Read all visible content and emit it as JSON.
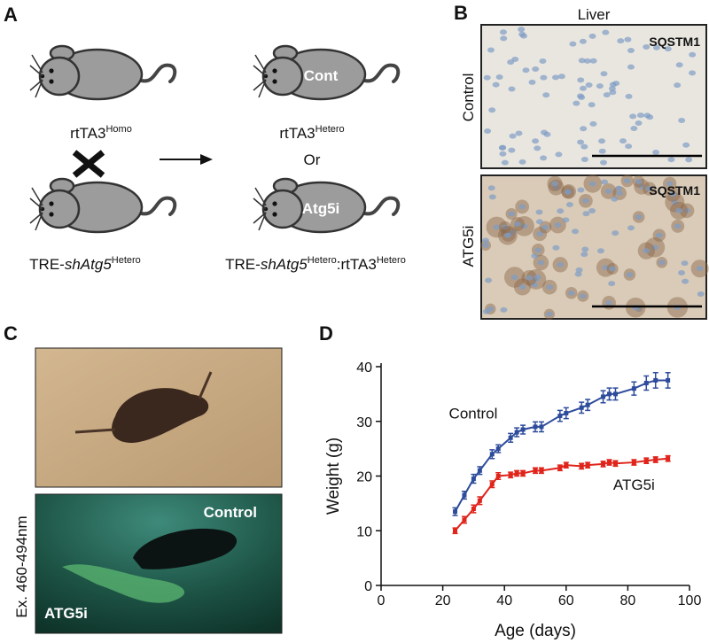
{
  "panel_a": {
    "letter": "A",
    "genotypes": [
      [
        "rtTA3",
        "Homo"
      ],
      [
        "TRE-",
        "shAtg5",
        "Hetero"
      ],
      [
        "rtTA3",
        "Hetero"
      ],
      [
        "TRE-",
        "shAtg5",
        "Hetero",
        ":rtTA3",
        "Hetero"
      ]
    ],
    "mouse_labels": [
      "Cont",
      "Atg5i"
    ],
    "or": "Or"
  },
  "panel_b": {
    "letter": "B",
    "title": "Liver",
    "rows": [
      {
        "label": "Control",
        "stain": "SQSTM1"
      },
      {
        "label": "ATG5i",
        "stain": "SQSTM1"
      }
    ]
  },
  "panel_c": {
    "letter": "C",
    "excitation": "Ex. 460-494nm",
    "labels": [
      "Control",
      "ATG5i"
    ]
  },
  "panel_d": {
    "letter": "D"
  },
  "chart_data": {
    "type": "line",
    "x_label": "Age (days)",
    "y_label": "Weight (g)",
    "x": [
      24,
      27,
      30,
      32,
      36,
      38,
      42,
      44,
      46,
      50,
      52,
      58,
      60,
      65,
      67,
      72,
      74,
      76,
      82,
      86,
      89,
      93
    ],
    "series": [
      {
        "name": "Control",
        "color": "#2e4c9c",
        "values": [
          13.5,
          16.5,
          19.5,
          21,
          24,
          25,
          27,
          28,
          28.5,
          29,
          29,
          31,
          31.5,
          32.5,
          33,
          34.5,
          35,
          35,
          36,
          37,
          37.5,
          37.5
        ],
        "errors": [
          0.7,
          0.7,
          0.8,
          0.7,
          0.8,
          0.7,
          0.8,
          0.8,
          0.8,
          0.9,
          0.9,
          1,
          1,
          1,
          1,
          1.1,
          1.1,
          1.1,
          1.2,
          1.3,
          1.4,
          1.4
        ]
      },
      {
        "name": "ATG5i",
        "color": "#e0241b",
        "values": [
          10,
          12,
          14,
          15.5,
          18.5,
          20,
          20.2,
          20.5,
          20.5,
          21,
          21,
          21.5,
          22,
          21.8,
          22,
          22.2,
          22.5,
          22.3,
          22.5,
          22.8,
          23,
          23.2
        ],
        "errors": [
          0.5,
          0.6,
          0.7,
          0.7,
          0.6,
          0.6,
          0.5,
          0.5,
          0.5,
          0.5,
          0.5,
          0.5,
          0.5,
          0.5,
          0.5,
          0.5,
          0.5,
          0.5,
          0.5,
          0.5,
          0.5,
          0.5
        ]
      }
    ],
    "xlim": [
      0,
      100
    ],
    "xticks": [
      0,
      20,
      40,
      60,
      80,
      100
    ],
    "ylim": [
      0,
      40
    ],
    "yticks": [
      0,
      10,
      20,
      30,
      40
    ]
  }
}
